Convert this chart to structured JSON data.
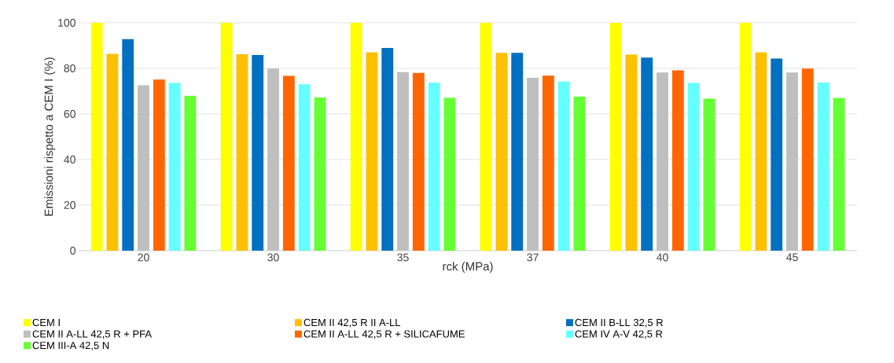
{
  "chart_data": {
    "type": "bar",
    "xlabel": "rck (MPa)",
    "ylabel": "Emissioni rispetto a CEM I (%)",
    "categories": [
      "20",
      "30",
      "35",
      "37",
      "40",
      "45"
    ],
    "series": [
      {
        "name": "CEM I",
        "color": "#ffff00",
        "values": [
          100,
          100,
          100,
          100,
          100,
          100
        ]
      },
      {
        "name": "CEM II 42,5 R II A-LL",
        "color": "#ffc000",
        "values": [
          86.4,
          86.2,
          87.1,
          86.8,
          86.0,
          87.1
        ]
      },
      {
        "name": "CEM II B-LL 32,5 R",
        "color": "#0070c0",
        "values": [
          92.8,
          85.9,
          89.0,
          86.8,
          84.7,
          84.3
        ]
      },
      {
        "name": "CEM II A-LL 42,5 R + PFA",
        "color": "#bfbfbf",
        "values": [
          72.6,
          79.9,
          78.4,
          75.9,
          78.2,
          78.2
        ]
      },
      {
        "name": "CEM II A-LL 42,5 R + SILICAFUME",
        "color": "#ff6600",
        "values": [
          75.1,
          76.7,
          78.0,
          76.8,
          79.1,
          79.9
        ]
      },
      {
        "name": "CEM IV A-V 42,5 R",
        "color": "#66ffff",
        "values": [
          73.6,
          73.0,
          73.7,
          74.3,
          73.6,
          73.8
        ]
      },
      {
        "name": "CEM III-A 42,5 N",
        "color": "#66ff33",
        "values": [
          68.0,
          67.2,
          67.1,
          67.6,
          66.7,
          67.0
        ]
      }
    ],
    "ylim": [
      0,
      100
    ],
    "yticks": [
      0,
      20,
      40,
      60,
      80,
      100
    ],
    "grid": "y",
    "legend": "bottom"
  }
}
